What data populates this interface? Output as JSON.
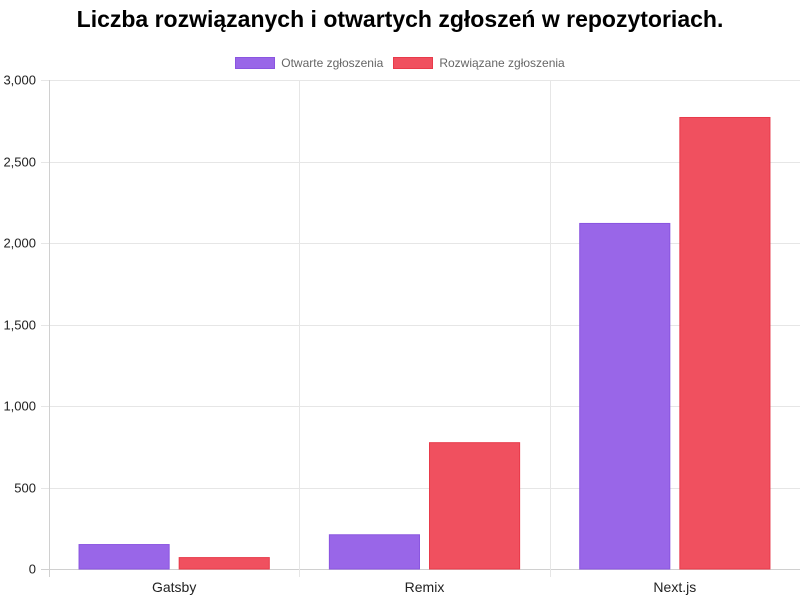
{
  "chart_data": {
    "type": "bar",
    "title": "Liczba rozwiązanych i otwartych zgłoszeń w repozytoriach.",
    "categories": [
      "Gatsby",
      "Remix",
      "Next.js"
    ],
    "series": [
      {
        "name": "Otwarte zgłoszenia",
        "values": [
          150,
          210,
          2120
        ],
        "color": "#9966e8",
        "border_color": "#8a55e0"
      },
      {
        "name": "Rozwiązane zgłoszenia",
        "values": [
          70,
          775,
          2770
        ],
        "color": "#f0505f",
        "border_color": "#e83a4a"
      }
    ],
    "ylim": [
      0,
      3000
    ],
    "yticks": [
      0,
      500,
      1000,
      1500,
      2000,
      2500,
      3000
    ],
    "ytick_labels": [
      "0",
      "500",
      "1,000",
      "1,500",
      "2,000",
      "2,500",
      "3,000"
    ],
    "grid": true,
    "legend_position": "top-center",
    "xlabel": "",
    "ylabel": ""
  }
}
